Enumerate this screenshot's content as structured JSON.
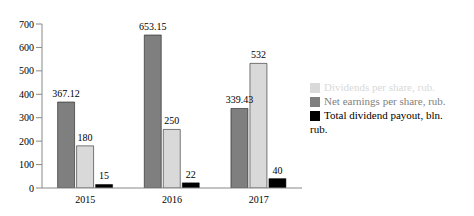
{
  "chart_data": {
    "type": "bar",
    "categories": [
      "2015",
      "2016",
      "2017"
    ],
    "series": [
      {
        "name": "Net earnings per share, rub.",
        "color": "#7f7f7f",
        "values": [
          367.12,
          653.15,
          339.43
        ]
      },
      {
        "name": "Dividends per share, rub.",
        "color": "#d9d9d9",
        "values": [
          180,
          250,
          532
        ]
      },
      {
        "name": "Total dividend payout, bln. rub.",
        "color": "#000000",
        "values": [
          15,
          22,
          40
        ]
      }
    ],
    "ylim": [
      0,
      700
    ],
    "yticks": [
      0,
      100,
      200,
      300,
      400,
      500,
      600,
      700
    ],
    "grid": false,
    "legend": "right",
    "data_labels": true
  }
}
